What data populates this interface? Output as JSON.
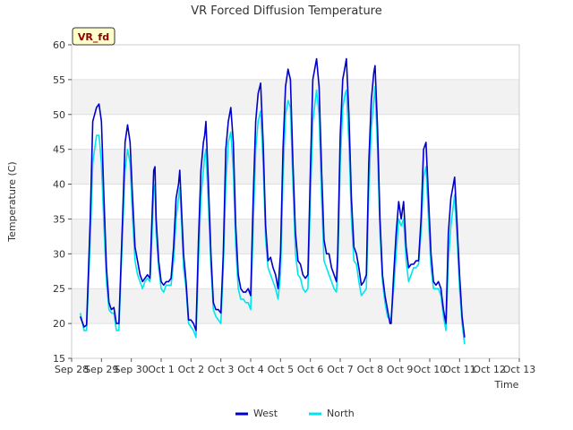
{
  "chart_data": {
    "type": "line",
    "title": "VR Forced Diffusion Temperature",
    "xlabel": "Time",
    "ylabel": "Temperature (C)",
    "ylim": [
      15,
      60
    ],
    "xlim": [
      "2023-09-28",
      "2023-10-13"
    ],
    "yticks": [
      15,
      20,
      25,
      30,
      35,
      40,
      45,
      50,
      55,
      60
    ],
    "xtick_labels": [
      "Sep 28",
      "Sep 29",
      "Sep 30",
      "Oct 1",
      "Oct 2",
      "Oct 3",
      "Oct 4",
      "Oct 5",
      "Oct 6",
      "Oct 7",
      "Oct 8",
      "Oct 9",
      "Oct 10",
      "Oct 11",
      "Oct 12",
      "Oct 13"
    ],
    "grid": "horizontal bands",
    "legend_position": "bottom-center",
    "annotation": "VR_fd",
    "x_hours_since": "2023-09-28 00:00",
    "series": [
      {
        "name": "West",
        "color": "#0000cc",
        "points": [
          [
            7,
            21
          ],
          [
            10,
            19.5
          ],
          [
            12,
            19.8
          ],
          [
            15,
            35
          ],
          [
            17,
            49
          ],
          [
            20,
            51
          ],
          [
            22,
            51.5
          ],
          [
            24,
            49
          ],
          [
            26,
            38
          ],
          [
            28,
            28
          ],
          [
            30,
            23
          ],
          [
            32,
            22
          ],
          [
            34,
            22.3
          ],
          [
            36,
            20
          ],
          [
            38,
            20
          ],
          [
            41,
            35
          ],
          [
            43,
            46
          ],
          [
            45,
            48.5
          ],
          [
            47,
            46
          ],
          [
            49,
            38
          ],
          [
            51,
            31
          ],
          [
            53,
            29
          ],
          [
            55,
            27
          ],
          [
            57,
            26
          ],
          [
            59,
            26.5
          ],
          [
            61,
            27
          ],
          [
            63,
            26.5
          ],
          [
            64,
            32
          ],
          [
            66,
            42
          ],
          [
            67,
            42.5
          ],
          [
            68,
            35
          ],
          [
            70,
            29
          ],
          [
            72,
            26
          ],
          [
            74,
            25.5
          ],
          [
            76,
            26
          ],
          [
            78,
            26
          ],
          [
            80,
            26.5
          ],
          [
            82,
            31
          ],
          [
            84,
            38
          ],
          [
            86,
            40
          ],
          [
            87,
            42
          ],
          [
            88,
            38
          ],
          [
            90,
            30
          ],
          [
            92,
            26
          ],
          [
            94,
            20.5
          ],
          [
            96,
            20.5
          ],
          [
            98,
            20
          ],
          [
            100,
            19
          ],
          [
            102,
            32
          ],
          [
            104,
            42
          ],
          [
            106,
            46
          ],
          [
            107,
            47
          ],
          [
            108,
            49
          ],
          [
            110,
            40
          ],
          [
            112,
            30
          ],
          [
            114,
            23
          ],
          [
            116,
            22
          ],
          [
            118,
            22
          ],
          [
            120,
            21.5
          ],
          [
            122,
            30
          ],
          [
            124,
            45
          ],
          [
            126,
            49
          ],
          [
            128,
            51
          ],
          [
            130,
            46
          ],
          [
            132,
            34
          ],
          [
            134,
            27
          ],
          [
            136,
            25
          ],
          [
            138,
            24.5
          ],
          [
            140,
            24.5
          ],
          [
            142,
            25
          ],
          [
            144,
            24
          ],
          [
            146,
            38
          ],
          [
            148,
            49
          ],
          [
            150,
            53
          ],
          [
            152,
            54.5
          ],
          [
            154,
            46
          ],
          [
            156,
            34
          ],
          [
            158,
            29
          ],
          [
            160,
            29.5
          ],
          [
            162,
            28
          ],
          [
            164,
            27
          ],
          [
            166,
            25
          ],
          [
            168,
            30
          ],
          [
            170,
            45
          ],
          [
            172,
            54
          ],
          [
            174,
            56.5
          ],
          [
            176,
            55
          ],
          [
            178,
            43
          ],
          [
            180,
            33
          ],
          [
            182,
            29
          ],
          [
            184,
            28.5
          ],
          [
            186,
            27
          ],
          [
            188,
            26.5
          ],
          [
            190,
            27
          ],
          [
            192,
            42
          ],
          [
            194,
            55
          ],
          [
            196,
            57
          ],
          [
            197,
            58
          ],
          [
            199,
            54
          ],
          [
            201,
            42
          ],
          [
            203,
            32
          ],
          [
            205,
            30
          ],
          [
            207,
            30
          ],
          [
            209,
            28
          ],
          [
            211,
            27
          ],
          [
            213,
            26
          ],
          [
            214,
            30
          ],
          [
            216,
            47
          ],
          [
            218,
            55
          ],
          [
            220,
            57
          ],
          [
            221,
            58
          ],
          [
            223,
            50
          ],
          [
            225,
            38
          ],
          [
            227,
            31
          ],
          [
            229,
            30
          ],
          [
            231,
            28
          ],
          [
            233,
            25.5
          ],
          [
            235,
            26
          ],
          [
            237,
            27
          ],
          [
            239,
            43
          ],
          [
            241,
            52
          ],
          [
            243,
            56
          ],
          [
            244,
            57
          ],
          [
            246,
            48
          ],
          [
            248,
            35
          ],
          [
            250,
            27
          ],
          [
            252,
            24
          ],
          [
            254,
            22
          ],
          [
            256,
            20
          ],
          [
            257,
            20
          ],
          [
            259,
            27
          ],
          [
            261,
            33
          ],
          [
            263,
            37.5
          ],
          [
            265,
            35
          ],
          [
            267,
            37.5
          ],
          [
            269,
            31
          ],
          [
            271,
            28
          ],
          [
            273,
            28.5
          ],
          [
            275,
            28.5
          ],
          [
            277,
            29
          ],
          [
            279,
            29
          ],
          [
            281,
            35
          ],
          [
            283,
            45
          ],
          [
            285,
            46
          ],
          [
            287,
            38
          ],
          [
            289,
            30
          ],
          [
            291,
            26
          ],
          [
            293,
            25.5
          ],
          [
            295,
            26
          ],
          [
            297,
            25
          ],
          [
            299,
            22
          ],
          [
            301,
            20
          ],
          [
            303,
            33
          ],
          [
            305,
            38
          ],
          [
            307,
            40
          ],
          [
            308,
            41
          ],
          [
            310,
            34
          ],
          [
            312,
            27
          ],
          [
            314,
            21
          ],
          [
            316,
            18
          ]
        ]
      },
      {
        "name": "North",
        "color": "#00e5ee",
        "points": [
          [
            7,
            21.5
          ],
          [
            10,
            19
          ],
          [
            12,
            19
          ],
          [
            15,
            32
          ],
          [
            17,
            43
          ],
          [
            20,
            47
          ],
          [
            22,
            47
          ],
          [
            24,
            43
          ],
          [
            26,
            34
          ],
          [
            28,
            26
          ],
          [
            30,
            22
          ],
          [
            32,
            21.5
          ],
          [
            34,
            21.5
          ],
          [
            36,
            19
          ],
          [
            38,
            19
          ],
          [
            41,
            33
          ],
          [
            43,
            42
          ],
          [
            45,
            45
          ],
          [
            47,
            43
          ],
          [
            49,
            35
          ],
          [
            51,
            29
          ],
          [
            53,
            27
          ],
          [
            55,
            26
          ],
          [
            57,
            25
          ],
          [
            59,
            26
          ],
          [
            61,
            26.5
          ],
          [
            63,
            26
          ],
          [
            64,
            30
          ],
          [
            66,
            39
          ],
          [
            67,
            40
          ],
          [
            68,
            33
          ],
          [
            70,
            28
          ],
          [
            72,
            25
          ],
          [
            74,
            24.5
          ],
          [
            76,
            25.5
          ],
          [
            78,
            25.5
          ],
          [
            80,
            25.5
          ],
          [
            82,
            29
          ],
          [
            84,
            35
          ],
          [
            86,
            38
          ],
          [
            87,
            39.5
          ],
          [
            88,
            36
          ],
          [
            90,
            28
          ],
          [
            92,
            25
          ],
          [
            94,
            20
          ],
          [
            96,
            19.5
          ],
          [
            98,
            19
          ],
          [
            100,
            18
          ],
          [
            102,
            29
          ],
          [
            104,
            38
          ],
          [
            106,
            42
          ],
          [
            107,
            44
          ],
          [
            108,
            45
          ],
          [
            110,
            37
          ],
          [
            112,
            28
          ],
          [
            114,
            22
          ],
          [
            116,
            21
          ],
          [
            118,
            20.5
          ],
          [
            120,
            20
          ],
          [
            122,
            28
          ],
          [
            124,
            40
          ],
          [
            126,
            46
          ],
          [
            128,
            47.5
          ],
          [
            130,
            42
          ],
          [
            132,
            31
          ],
          [
            134,
            25
          ],
          [
            136,
            23.5
          ],
          [
            138,
            23.5
          ],
          [
            140,
            23
          ],
          [
            142,
            23
          ],
          [
            144,
            22
          ],
          [
            146,
            34
          ],
          [
            148,
            45
          ],
          [
            150,
            49
          ],
          [
            152,
            50.5
          ],
          [
            154,
            43
          ],
          [
            156,
            32
          ],
          [
            158,
            28
          ],
          [
            160,
            27
          ],
          [
            162,
            26
          ],
          [
            164,
            25
          ],
          [
            166,
            23.5
          ],
          [
            168,
            27
          ],
          [
            170,
            41
          ],
          [
            172,
            50
          ],
          [
            174,
            52
          ],
          [
            176,
            51
          ],
          [
            178,
            40
          ],
          [
            180,
            30
          ],
          [
            182,
            27
          ],
          [
            184,
            26.5
          ],
          [
            186,
            25
          ],
          [
            188,
            24.5
          ],
          [
            190,
            25
          ],
          [
            192,
            38
          ],
          [
            194,
            49
          ],
          [
            196,
            52
          ],
          [
            197,
            53.5
          ],
          [
            199,
            50
          ],
          [
            201,
            38
          ],
          [
            203,
            29
          ],
          [
            205,
            28
          ],
          [
            207,
            27
          ],
          [
            209,
            26
          ],
          [
            211,
            25
          ],
          [
            213,
            24.5
          ],
          [
            214,
            28
          ],
          [
            216,
            43
          ],
          [
            218,
            51
          ],
          [
            220,
            53
          ],
          [
            221,
            53.5
          ],
          [
            223,
            46
          ],
          [
            225,
            35
          ],
          [
            227,
            29
          ],
          [
            229,
            28.5
          ],
          [
            231,
            26
          ],
          [
            233,
            24
          ],
          [
            235,
            24.5
          ],
          [
            237,
            25
          ],
          [
            239,
            39
          ],
          [
            241,
            48
          ],
          [
            243,
            52
          ],
          [
            244,
            54
          ],
          [
            246,
            45
          ],
          [
            248,
            33
          ],
          [
            250,
            26
          ],
          [
            252,
            23
          ],
          [
            254,
            21
          ],
          [
            256,
            20.5
          ],
          [
            257,
            21
          ],
          [
            259,
            25
          ],
          [
            261,
            30
          ],
          [
            263,
            35
          ],
          [
            265,
            34
          ],
          [
            267,
            35
          ],
          [
            269,
            29
          ],
          [
            271,
            26
          ],
          [
            273,
            27
          ],
          [
            275,
            28
          ],
          [
            277,
            28
          ],
          [
            279,
            28.5
          ],
          [
            281,
            33
          ],
          [
            283,
            41
          ],
          [
            285,
            42.5
          ],
          [
            287,
            35
          ],
          [
            289,
            28
          ],
          [
            291,
            25
          ],
          [
            293,
            25
          ],
          [
            295,
            25
          ],
          [
            297,
            24
          ],
          [
            299,
            21
          ],
          [
            301,
            19
          ],
          [
            303,
            29
          ],
          [
            305,
            34
          ],
          [
            307,
            37
          ],
          [
            308,
            38.5
          ],
          [
            310,
            32
          ],
          [
            312,
            25
          ],
          [
            314,
            20
          ],
          [
            316,
            17
          ]
        ]
      }
    ]
  }
}
